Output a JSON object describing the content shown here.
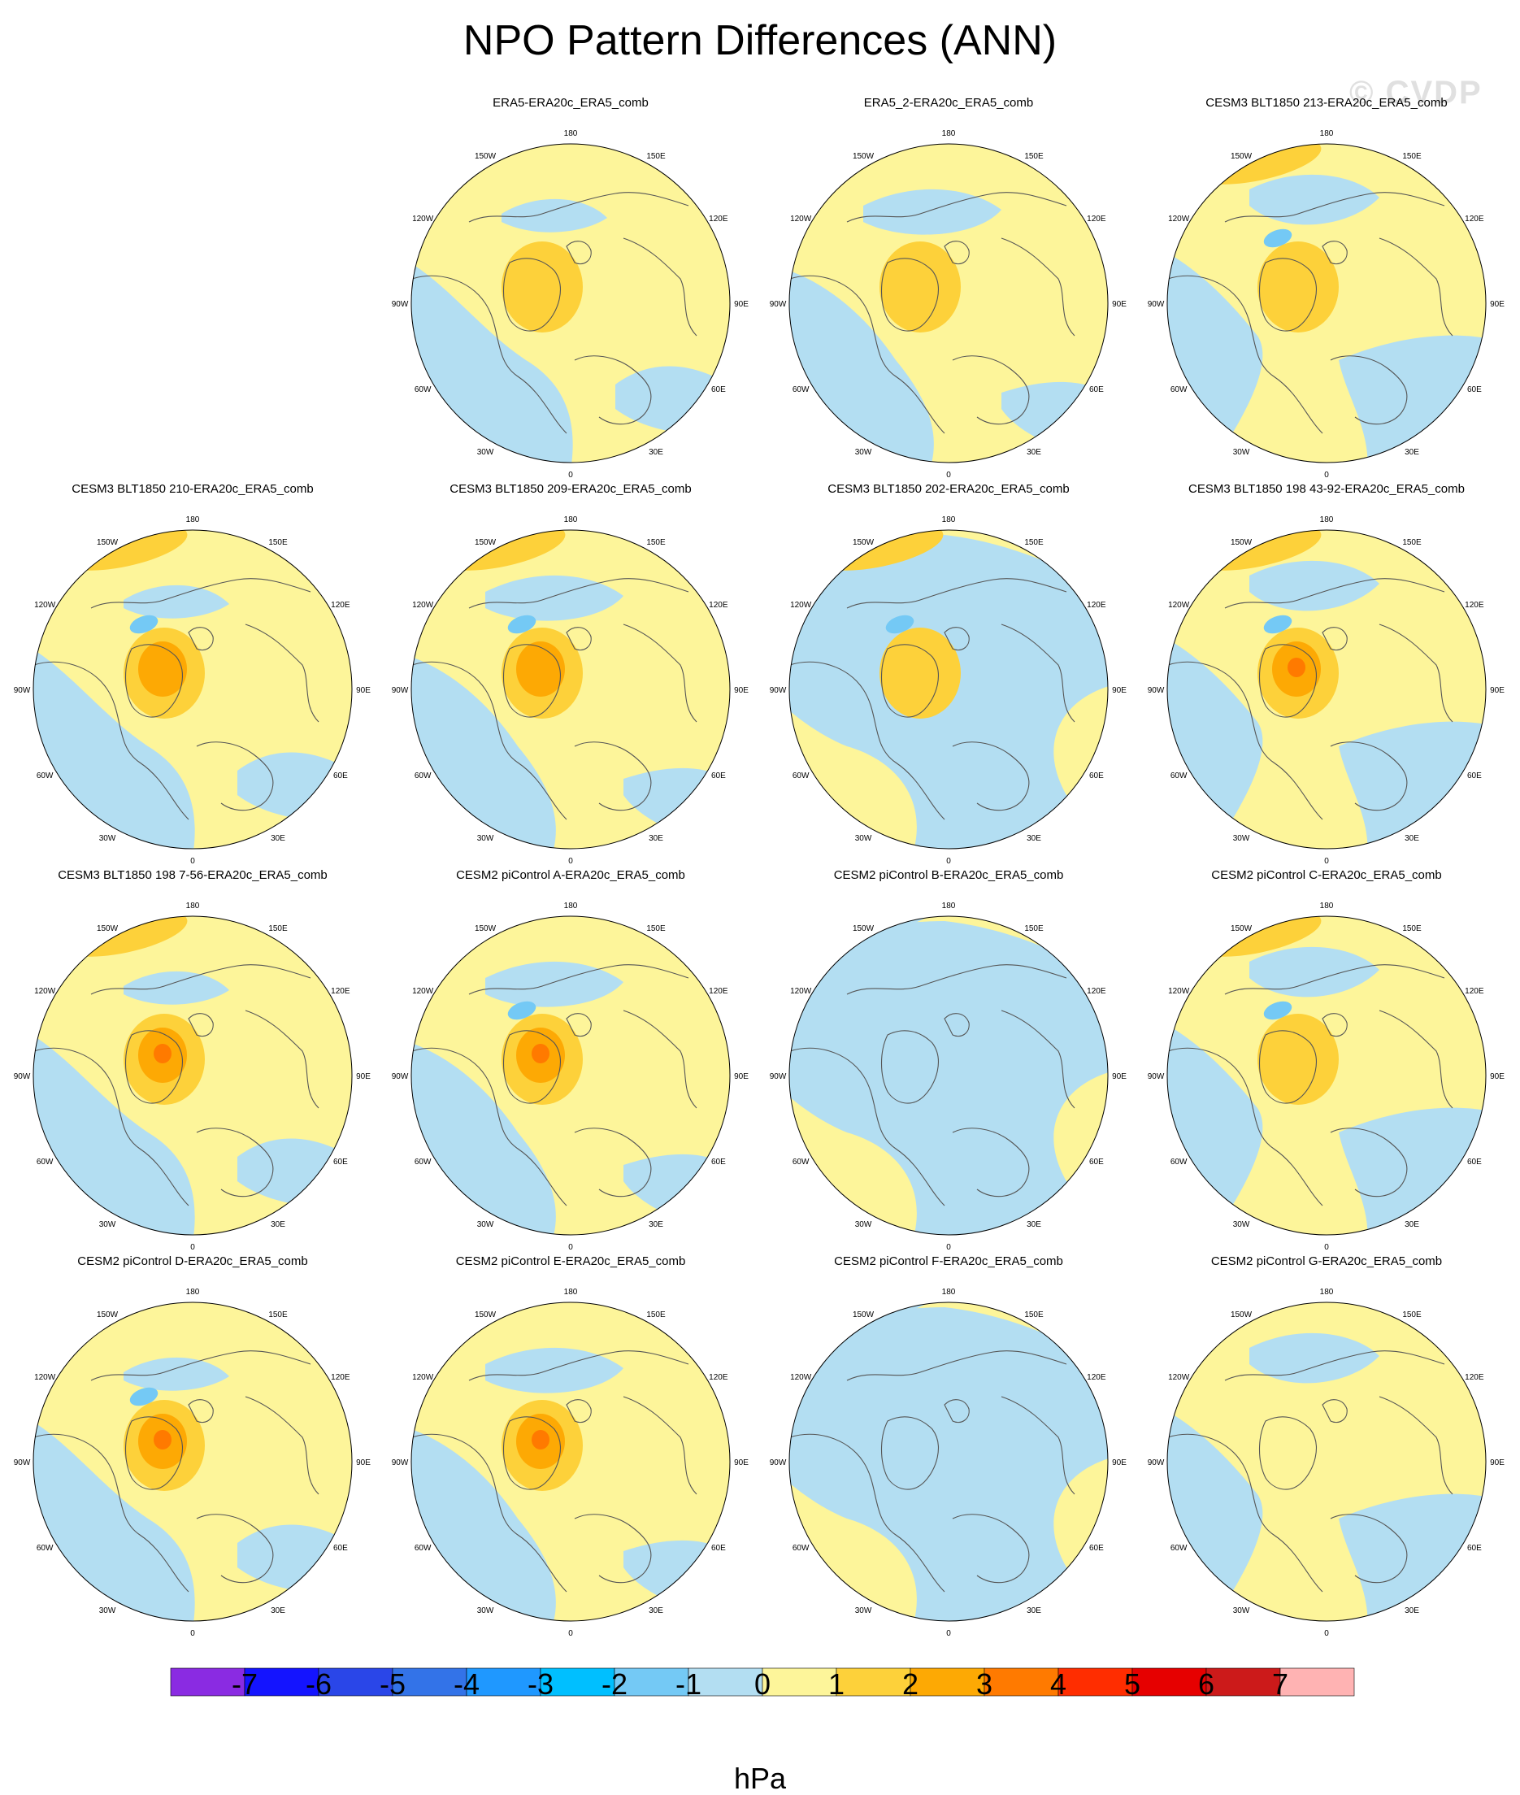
{
  "title": "NPO Pattern Differences (ANN)",
  "watermark": "© CVDP",
  "longitude_labels": {
    "top": "180",
    "bottom": "0",
    "upper_left": "150W",
    "upper_right": "150E",
    "left_upper": "120W",
    "right_upper": "120E",
    "left_mid": "90W",
    "right_mid": "90E",
    "left_lower": "60W",
    "right_lower": "60E",
    "lower_left": "30W",
    "lower_right": "30E"
  },
  "colors": {
    "ocean_negative": "#b3def2",
    "positive_light": "#fdf59a",
    "positive_1": "#fdd13a",
    "positive_2": "#fda904",
    "positive_3": "#ff7a00",
    "negative_1": "#74c9f5",
    "coast": "#555555"
  },
  "panels": [
    {
      "title": "ERA5-ERA20c_ERA5_comb",
      "high": 1,
      "low": 0,
      "pac_high": 0,
      "variant": 0
    },
    {
      "title": "ERA5_2-ERA20c_ERA5_comb",
      "high": 1,
      "low": 0,
      "pac_high": 0,
      "variant": 1
    },
    {
      "title": "CESM3 BLT1850 213-ERA20c_ERA5_comb",
      "high": 1,
      "low": 1,
      "pac_high": 1,
      "variant": 2
    },
    {
      "title": "CESM3 BLT1850 210-ERA20c_ERA5_comb",
      "high": 2,
      "low": 1,
      "pac_high": 1,
      "variant": 0
    },
    {
      "title": "CESM3 BLT1850 209-ERA20c_ERA5_comb",
      "high": 2,
      "low": 1,
      "pac_high": 1,
      "variant": 1
    },
    {
      "title": "CESM3 BLT1850 202-ERA20c_ERA5_comb",
      "high": 1,
      "low": 1,
      "pac_high": 1,
      "variant": 3
    },
    {
      "title": "CESM3 BLT1850 198 43-92-ERA20c_ERA5_comb",
      "high": 3,
      "low": 1,
      "pac_high": 1,
      "variant": 2
    },
    {
      "title": "CESM3 BLT1850 198 7-56-ERA20c_ERA5_comb",
      "high": 3,
      "low": 0,
      "pac_high": 1,
      "variant": 0
    },
    {
      "title": "CESM2 piControl A-ERA20c_ERA5_comb",
      "high": 3,
      "low": 1,
      "pac_high": 0,
      "variant": 1
    },
    {
      "title": "CESM2 piControl B-ERA20c_ERA5_comb",
      "high": 0,
      "low": 0,
      "pac_high": 0,
      "variant": 3
    },
    {
      "title": "CESM2 piControl C-ERA20c_ERA5_comb",
      "high": 1,
      "low": 1,
      "pac_high": 1,
      "variant": 2
    },
    {
      "title": "CESM2 piControl D-ERA20c_ERA5_comb",
      "high": 3,
      "low": 1,
      "pac_high": 0,
      "variant": 0
    },
    {
      "title": "CESM2 piControl E-ERA20c_ERA5_comb",
      "high": 3,
      "low": 0,
      "pac_high": 0,
      "variant": 1
    },
    {
      "title": "CESM2 piControl F-ERA20c_ERA5_comb",
      "high": 0,
      "low": 0,
      "pac_high": 0,
      "variant": 3
    },
    {
      "title": "CESM2 piControl G-ERA20c_ERA5_comb",
      "high": 0,
      "low": 0,
      "pac_high": 0,
      "variant": 2
    }
  ],
  "colorbar": {
    "units": "hPa",
    "colors": [
      "#8a2be2",
      "#1414ff",
      "#2a46e8",
      "#3373e8",
      "#1f98ff",
      "#00bfff",
      "#74c9f5",
      "#b3def2",
      "#fdf59a",
      "#fdd13a",
      "#fda904",
      "#ff7a00",
      "#ff2d00",
      "#e60000",
      "#cc1a1a",
      "#ffb3b3"
    ],
    "labels": [
      "-7",
      "-6",
      "-5",
      "-4",
      "-3",
      "-2",
      "-1",
      "0",
      "1",
      "2",
      "3",
      "4",
      "5",
      "6",
      "7"
    ]
  }
}
